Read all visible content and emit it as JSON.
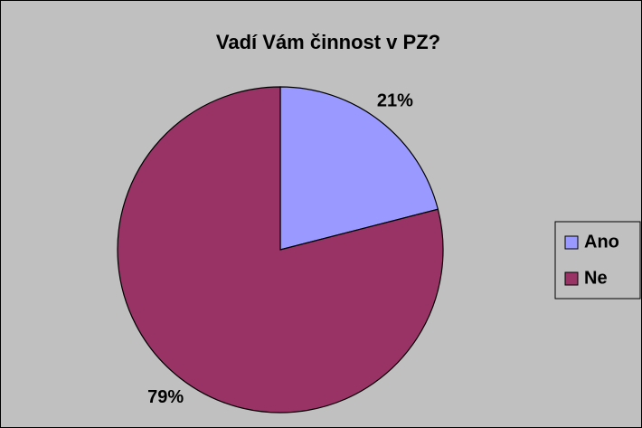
{
  "chart_data": {
    "type": "pie",
    "title": "Vadí Vám činnost v PZ?",
    "categories": [
      "Ano",
      "Ne"
    ],
    "values": [
      21,
      79
    ],
    "value_labels": [
      "21%",
      "79%"
    ],
    "colors": [
      "#9999ff",
      "#993366"
    ],
    "legend": "right"
  }
}
